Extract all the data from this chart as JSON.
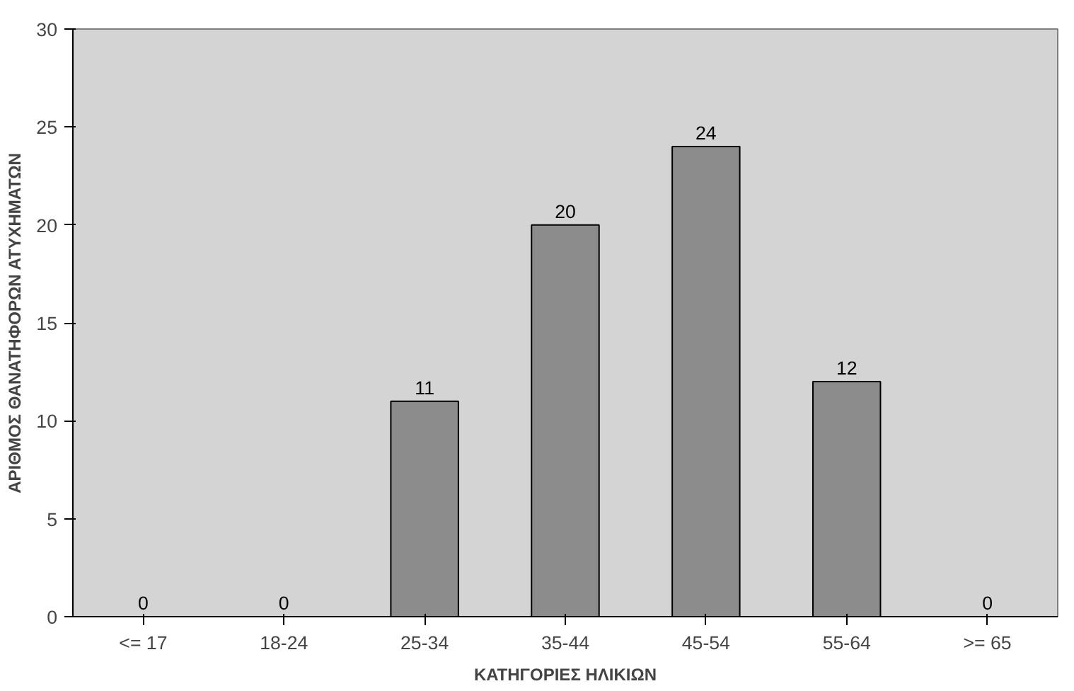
{
  "chart_data": {
    "type": "bar",
    "xlabel": "ΚΑΤΗΓΟΡΙΕΣ ΗΛΙΚΙΩΝ",
    "ylabel": "ΑΡΙΘΜΟΣ ΘΑΝΑΤΗΦΟΡΩΝ ΑΤΥΧΗΜΑΤΩΝ",
    "categories": [
      "<= 17",
      "18-24",
      "25-34",
      "35-44",
      "45-54",
      "55-64",
      ">= 65"
    ],
    "values": [
      0,
      0,
      11,
      20,
      24,
      12,
      0
    ],
    "color": "#8c8c8c",
    "ylim": [
      0,
      30
    ],
    "yticks": [
      0,
      5,
      10,
      15,
      20,
      25,
      30
    ],
    "data_labels": true,
    "grid": false
  }
}
